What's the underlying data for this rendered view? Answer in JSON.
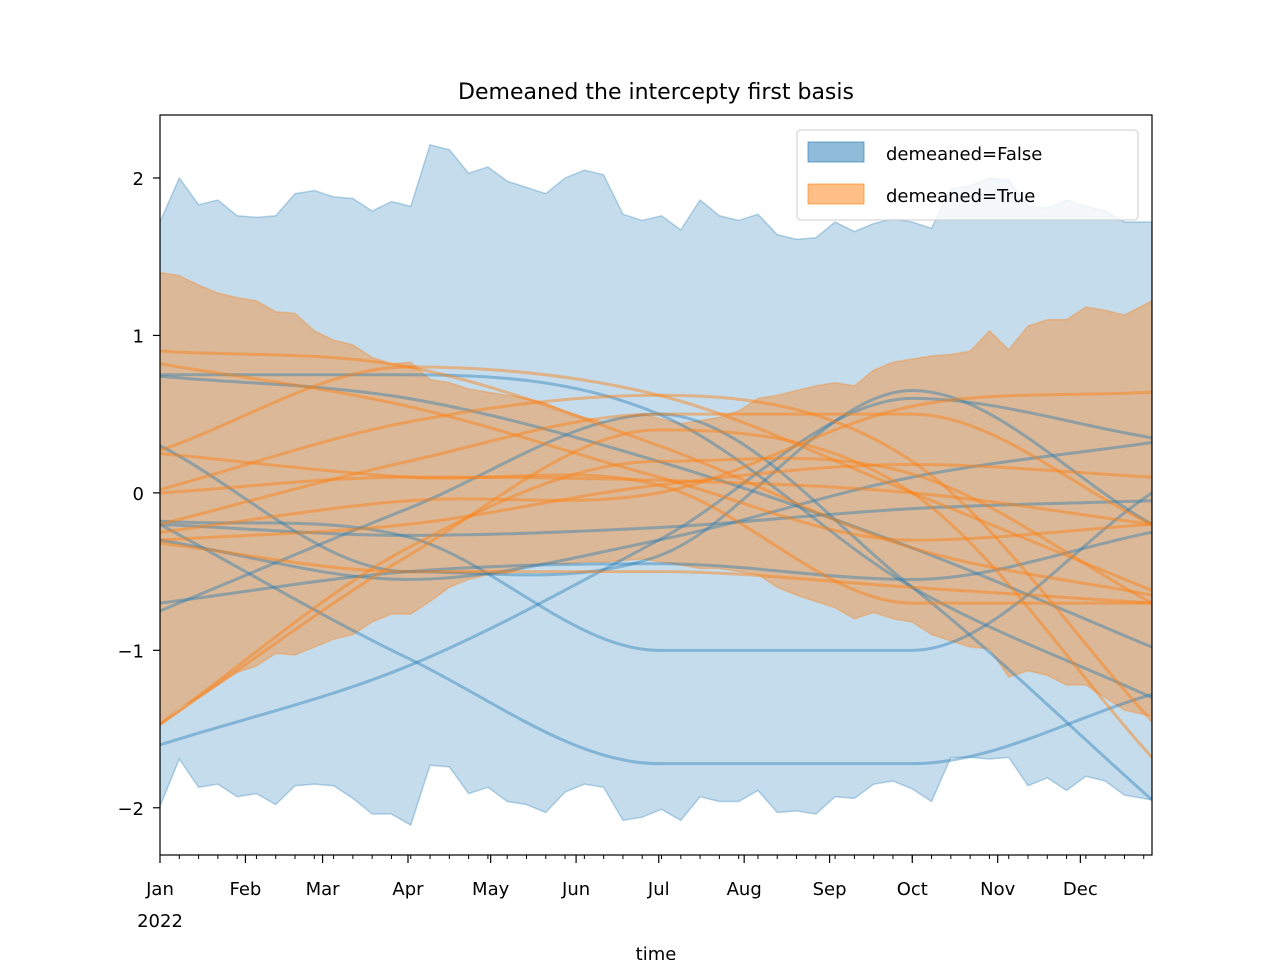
{
  "chart_data": {
    "type": "area",
    "title": "Demeaned the intercepty first basis",
    "xlabel": "time",
    "ylabel": "",
    "x_range": [
      "2022-01-01",
      "2022-12-27"
    ],
    "ylim": [
      -2.3,
      2.4
    ],
    "yticks": [
      {
        "value": 2,
        "label": "2"
      },
      {
        "value": 1,
        "label": "1"
      },
      {
        "value": 0,
        "label": "0"
      },
      {
        "value": -1,
        "label": "−1"
      },
      {
        "value": -2,
        "label": "−2"
      }
    ],
    "xticks": [
      {
        "date": "2022-01-01",
        "label": "Jan",
        "sublabel": "2022"
      },
      {
        "date": "2022-02-01",
        "label": "Feb"
      },
      {
        "date": "2022-03-01",
        "label": "Mar"
      },
      {
        "date": "2022-04-01",
        "label": "Apr"
      },
      {
        "date": "2022-05-01",
        "label": "May"
      },
      {
        "date": "2022-06-01",
        "label": "Jun"
      },
      {
        "date": "2022-07-01",
        "label": "Jul"
      },
      {
        "date": "2022-08-01",
        "label": "Aug"
      },
      {
        "date": "2022-09-01",
        "label": "Sep"
      },
      {
        "date": "2022-10-01",
        "label": "Oct"
      },
      {
        "date": "2022-11-01",
        "label": "Nov"
      },
      {
        "date": "2022-12-01",
        "label": "Dec"
      }
    ],
    "grid": false,
    "legend": {
      "placement": "top-right",
      "entries": [
        {
          "label": "demeaned=False",
          "color": "#1f77b4"
        },
        {
          "label": "demeaned=True",
          "color": "#ff7f0e"
        }
      ]
    },
    "series": [
      {
        "name": "demeaned=False",
        "color": "#1f77b4",
        "band": {
          "x": [
            "2022-01-01",
            "2022-01-08",
            "2022-01-15",
            "2022-01-22",
            "2022-01-29",
            "2022-02-05",
            "2022-02-12",
            "2022-02-19",
            "2022-02-26",
            "2022-03-05",
            "2022-03-12",
            "2022-03-19",
            "2022-03-26",
            "2022-04-02",
            "2022-04-09",
            "2022-04-16",
            "2022-04-23",
            "2022-04-30",
            "2022-05-07",
            "2022-05-14",
            "2022-05-21",
            "2022-05-28",
            "2022-06-04",
            "2022-06-11",
            "2022-06-18",
            "2022-06-25",
            "2022-07-02",
            "2022-07-09",
            "2022-07-16",
            "2022-07-23",
            "2022-07-30",
            "2022-08-06",
            "2022-08-13",
            "2022-08-20",
            "2022-08-27",
            "2022-09-03",
            "2022-09-10",
            "2022-09-17",
            "2022-09-24",
            "2022-10-01",
            "2022-10-08",
            "2022-10-15",
            "2022-10-22",
            "2022-10-29",
            "2022-11-05",
            "2022-11-12",
            "2022-11-19",
            "2022-11-26",
            "2022-12-03",
            "2022-12-10",
            "2022-12-17",
            "2022-12-27"
          ],
          "upper": [
            1.72,
            2.0,
            1.83,
            1.86,
            1.76,
            1.75,
            1.76,
            1.9,
            1.92,
            1.88,
            1.87,
            1.79,
            1.85,
            1.82,
            2.21,
            2.18,
            2.03,
            2.07,
            1.98,
            1.94,
            1.9,
            2.0,
            2.05,
            2.02,
            1.77,
            1.73,
            1.76,
            1.67,
            1.86,
            1.76,
            1.73,
            1.77,
            1.64,
            1.61,
            1.62,
            1.72,
            1.66,
            1.71,
            1.74,
            1.72,
            1.68,
            1.93,
            1.95,
            2.0,
            1.99,
            1.82,
            1.81,
            1.86,
            1.82,
            1.79,
            1.72,
            1.72
          ],
          "lower": [
            -1.99,
            -1.69,
            -1.87,
            -1.85,
            -1.93,
            -1.91,
            -1.98,
            -1.86,
            -1.85,
            -1.86,
            -1.94,
            -2.04,
            -2.04,
            -2.11,
            -1.73,
            -1.74,
            -1.91,
            -1.87,
            -1.96,
            -1.98,
            -2.03,
            -1.9,
            -1.85,
            -1.87,
            -2.08,
            -2.06,
            -2.01,
            -2.08,
            -1.93,
            -1.96,
            -1.96,
            -1.89,
            -2.03,
            -2.02,
            -2.04,
            -1.93,
            -1.94,
            -1.85,
            -1.83,
            -1.88,
            -1.96,
            -1.68,
            -1.68,
            -1.69,
            -1.68,
            -1.86,
            -1.81,
            -1.89,
            -1.8,
            -1.83,
            -1.92,
            -1.95
          ]
        },
        "curves": [
          {
            "x": [
              "2022-01-01",
              "2022-04-01",
              "2022-07-01",
              "2022-10-01",
              "2022-12-27"
            ],
            "y": [
              0.75,
              0.75,
              0.5,
              -0.6,
              -1.3
            ]
          },
          {
            "x": [
              "2022-01-01",
              "2022-04-01",
              "2022-07-01",
              "2022-10-01",
              "2022-12-27"
            ],
            "y": [
              0.3,
              -0.5,
              -0.4,
              0.65,
              -0.2
            ]
          },
          {
            "x": [
              "2022-01-01",
              "2022-04-01",
              "2022-07-01",
              "2022-10-01",
              "2022-12-27"
            ],
            "y": [
              -1.6,
              -1.1,
              -0.3,
              0.6,
              0.35
            ]
          },
          {
            "x": [
              "2022-01-01",
              "2022-04-01",
              "2022-07-01",
              "2022-10-01",
              "2022-12-27"
            ],
            "y": [
              -0.75,
              -0.1,
              0.5,
              -0.6,
              -1.95
            ]
          },
          {
            "x": [
              "2022-01-01",
              "2022-04-01",
              "2022-07-01",
              "2022-10-01",
              "2022-12-27"
            ],
            "y": [
              -0.7,
              -0.5,
              -0.45,
              -0.55,
              -0.25
            ]
          },
          {
            "x": [
              "2022-01-01",
              "2022-04-01",
              "2022-07-01",
              "2022-10-01",
              "2022-12-27"
            ],
            "y": [
              -0.2,
              -1.05,
              -1.72,
              -1.72,
              -1.28
            ]
          },
          {
            "x": [
              "2022-01-01",
              "2022-04-01",
              "2022-07-01",
              "2022-10-01",
              "2022-12-27"
            ],
            "y": [
              -0.18,
              -0.28,
              -1.0,
              -1.0,
              0.0
            ]
          },
          {
            "x": [
              "2022-01-01",
              "2022-04-01",
              "2022-07-01",
              "2022-10-01",
              "2022-12-27"
            ],
            "y": [
              -0.3,
              -0.55,
              -0.3,
              0.1,
              0.32
            ]
          },
          {
            "x": [
              "2022-01-01",
              "2022-04-01",
              "2022-07-01",
              "2022-10-01",
              "2022-12-27"
            ],
            "y": [
              0.74,
              0.6,
              0.2,
              -0.35,
              -0.98
            ]
          },
          {
            "x": [
              "2022-01-01",
              "2022-04-01",
              "2022-07-01",
              "2022-10-01",
              "2022-12-27"
            ],
            "y": [
              -0.2,
              -0.27,
              -0.22,
              -0.1,
              -0.05
            ]
          }
        ]
      },
      {
        "name": "demeaned=True",
        "color": "#ff7f0e",
        "band": {
          "x": [
            "2022-01-01",
            "2022-01-08",
            "2022-01-15",
            "2022-01-22",
            "2022-01-29",
            "2022-02-05",
            "2022-02-12",
            "2022-02-19",
            "2022-02-26",
            "2022-03-05",
            "2022-03-12",
            "2022-03-19",
            "2022-03-26",
            "2022-04-02",
            "2022-04-09",
            "2022-04-16",
            "2022-04-23",
            "2022-04-30",
            "2022-05-07",
            "2022-05-14",
            "2022-05-21",
            "2022-05-28",
            "2022-06-04",
            "2022-06-11",
            "2022-06-18",
            "2022-06-25",
            "2022-07-02",
            "2022-07-09",
            "2022-07-16",
            "2022-07-23",
            "2022-07-30",
            "2022-08-06",
            "2022-08-13",
            "2022-08-20",
            "2022-08-27",
            "2022-09-03",
            "2022-09-10",
            "2022-09-17",
            "2022-09-24",
            "2022-10-01",
            "2022-10-08",
            "2022-10-15",
            "2022-10-22",
            "2022-10-29",
            "2022-11-05",
            "2022-11-12",
            "2022-11-19",
            "2022-11-26",
            "2022-12-03",
            "2022-12-10",
            "2022-12-17",
            "2022-12-27"
          ],
          "upper": [
            1.4,
            1.38,
            1.32,
            1.27,
            1.24,
            1.22,
            1.15,
            1.14,
            1.03,
            0.97,
            0.94,
            0.86,
            0.82,
            0.83,
            0.72,
            0.7,
            0.66,
            0.64,
            0.62,
            0.6,
            0.57,
            0.52,
            0.48,
            0.45,
            0.48,
            0.5,
            0.47,
            0.44,
            0.46,
            0.48,
            0.52,
            0.6,
            0.62,
            0.65,
            0.68,
            0.7,
            0.68,
            0.78,
            0.83,
            0.85,
            0.87,
            0.88,
            0.9,
            1.03,
            0.91,
            1.06,
            1.1,
            1.1,
            1.18,
            1.16,
            1.13,
            1.22
          ],
          "lower": [
            -1.47,
            -1.36,
            -1.3,
            -1.22,
            -1.14,
            -1.1,
            -1.02,
            -1.03,
            -0.98,
            -0.93,
            -0.9,
            -0.82,
            -0.77,
            -0.77,
            -0.69,
            -0.6,
            -0.55,
            -0.52,
            -0.51,
            -0.47,
            -0.45,
            -0.45,
            -0.44,
            -0.44,
            -0.43,
            -0.42,
            -0.44,
            -0.46,
            -0.48,
            -0.48,
            -0.5,
            -0.52,
            -0.6,
            -0.65,
            -0.69,
            -0.73,
            -0.8,
            -0.76,
            -0.8,
            -0.82,
            -0.9,
            -0.94,
            -0.98,
            -0.99,
            -1.17,
            -1.13,
            -1.16,
            -1.22,
            -1.22,
            -1.3,
            -1.38,
            -1.42
          ]
        },
        "curves": [
          {
            "x": [
              "2022-01-01",
              "2022-04-01",
              "2022-07-01",
              "2022-10-01",
              "2022-12-27"
            ],
            "y": [
              0.9,
              0.8,
              0.3,
              -0.35,
              -0.65
            ]
          },
          {
            "x": [
              "2022-01-01",
              "2022-04-01",
              "2022-07-01",
              "2022-10-01",
              "2022-12-27"
            ],
            "y": [
              0.82,
              0.55,
              0.1,
              -0.3,
              -0.2
            ]
          },
          {
            "x": [
              "2022-01-01",
              "2022-04-01",
              "2022-07-01",
              "2022-10-01",
              "2022-12-27"
            ],
            "y": [
              0.27,
              0.8,
              0.62,
              0.0,
              -0.62
            ]
          },
          {
            "x": [
              "2022-01-01",
              "2022-04-01",
              "2022-07-01",
              "2022-10-01",
              "2022-12-27"
            ],
            "y": [
              0.02,
              0.45,
              0.62,
              0.2,
              -1.45
            ]
          },
          {
            "x": [
              "2022-01-01",
              "2022-04-01",
              "2022-07-01",
              "2022-10-01",
              "2022-12-27"
            ],
            "y": [
              -0.2,
              0.2,
              0.5,
              0.5,
              -0.2
            ]
          },
          {
            "x": [
              "2022-01-01",
              "2022-04-01",
              "2022-07-01",
              "2022-10-01",
              "2022-12-27"
            ],
            "y": [
              -1.47,
              -0.4,
              0.4,
              0.0,
              -1.68
            ]
          },
          {
            "x": [
              "2022-01-01",
              "2022-04-01",
              "2022-07-01",
              "2022-10-01",
              "2022-12-27"
            ],
            "y": [
              -1.47,
              -0.35,
              0.2,
              0.12,
              -0.7
            ]
          },
          {
            "x": [
              "2022-01-01",
              "2022-04-01",
              "2022-07-01",
              "2022-10-01",
              "2022-12-27"
            ],
            "y": [
              -0.3,
              -0.2,
              0.05,
              0.18,
              0.1
            ]
          },
          {
            "x": [
              "2022-01-01",
              "2022-04-01",
              "2022-07-01",
              "2022-10-01",
              "2022-12-27"
            ],
            "y": [
              0.25,
              0.1,
              0.05,
              -0.7,
              -0.7
            ]
          },
          {
            "x": [
              "2022-01-01",
              "2022-04-01",
              "2022-07-01",
              "2022-10-01",
              "2022-12-27"
            ],
            "y": [
              -0.25,
              -0.05,
              0.0,
              0.55,
              0.64
            ]
          },
          {
            "x": [
              "2022-01-01",
              "2022-04-01",
              "2022-07-01",
              "2022-10-01",
              "2022-12-27"
            ],
            "y": [
              0.0,
              0.1,
              0.08,
              0.0,
              -0.2
            ]
          },
          {
            "x": [
              "2022-01-01",
              "2022-04-01",
              "2022-07-01",
              "2022-10-01",
              "2022-12-27"
            ],
            "y": [
              -0.32,
              -0.5,
              -0.5,
              -0.6,
              -0.7
            ]
          }
        ]
      }
    ]
  }
}
